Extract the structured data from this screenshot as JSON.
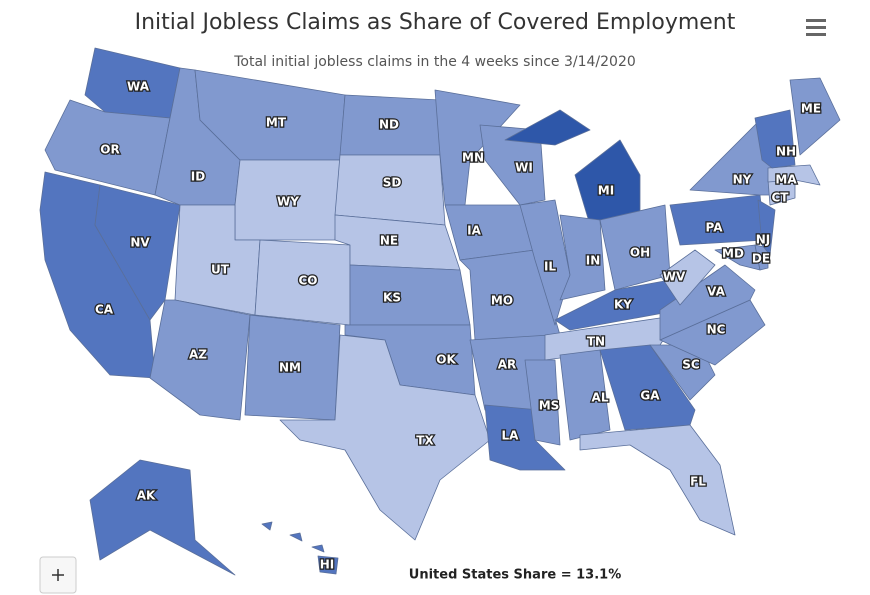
{
  "header": {
    "title": "Initial Jobless Claims as Share of Covered Employment",
    "subtitle": "Total initial jobless claims in the 4 weeks since 3/14/2020"
  },
  "states": [
    {
      "label": "WA",
      "color": "#5375bf"
    },
    {
      "label": "OR",
      "color": "#8199cf"
    },
    {
      "label": "CA",
      "color": "#5375bf"
    },
    {
      "label": "NV",
      "color": "#5375bf"
    },
    {
      "label": "ID",
      "color": "#8199cf"
    },
    {
      "label": "MT",
      "color": "#8199cf"
    },
    {
      "label": "WY",
      "color": "#b6c4e6"
    },
    {
      "label": "UT",
      "color": "#b6c4e6"
    },
    {
      "label": "CO",
      "color": "#b6c4e6"
    },
    {
      "label": "AZ",
      "color": "#8199cf"
    },
    {
      "label": "NM",
      "color": "#8199cf"
    },
    {
      "label": "ND",
      "color": "#8199cf"
    },
    {
      "label": "SD",
      "color": "#b6c4e6"
    },
    {
      "label": "NE",
      "color": "#b6c4e6"
    },
    {
      "label": "KS",
      "color": "#8199cf"
    },
    {
      "label": "OK",
      "color": "#8199cf"
    },
    {
      "label": "TX",
      "color": "#b6c4e6"
    },
    {
      "label": "MN",
      "color": "#8199cf"
    },
    {
      "label": "IA",
      "color": "#8199cf"
    },
    {
      "label": "MO",
      "color": "#8199cf"
    },
    {
      "label": "AR",
      "color": "#8199cf"
    },
    {
      "label": "LA",
      "color": "#5375bf"
    },
    {
      "label": "WI",
      "color": "#8199cf"
    },
    {
      "label": "IL",
      "color": "#8199cf"
    },
    {
      "label": "MI",
      "color": "#2e57a9"
    },
    {
      "label": "IN",
      "color": "#8199cf"
    },
    {
      "label": "OH",
      "color": "#8199cf"
    },
    {
      "label": "KY",
      "color": "#5375bf"
    },
    {
      "label": "TN",
      "color": "#b6c4e6"
    },
    {
      "label": "MS",
      "color": "#8199cf"
    },
    {
      "label": "AL",
      "color": "#8199cf"
    },
    {
      "label": "GA",
      "color": "#5375bf"
    },
    {
      "label": "FL",
      "color": "#b6c4e6"
    },
    {
      "label": "SC",
      "color": "#8199cf"
    },
    {
      "label": "NC",
      "color": "#8199cf"
    },
    {
      "label": "VA",
      "color": "#8199cf"
    },
    {
      "label": "WV",
      "color": "#b6c4e6"
    },
    {
      "label": "PA",
      "color": "#5375bf"
    },
    {
      "label": "NY",
      "color": "#8199cf"
    },
    {
      "label": "MD",
      "color": "#8199cf"
    },
    {
      "label": "DE",
      "color": "#8199cf"
    },
    {
      "label": "NJ",
      "color": "#5375bf"
    },
    {
      "label": "CT",
      "color": "#b6c4e6"
    },
    {
      "label": "MA",
      "color": "#b6c4e6"
    },
    {
      "label": "NH",
      "color": "#5375bf"
    },
    {
      "label": "ME",
      "color": "#8199cf"
    },
    {
      "label": "AK",
      "color": "#5375bf"
    },
    {
      "label": "HI",
      "color": "#5375bf"
    }
  ],
  "footer": "United States Share = 13.1%"
}
